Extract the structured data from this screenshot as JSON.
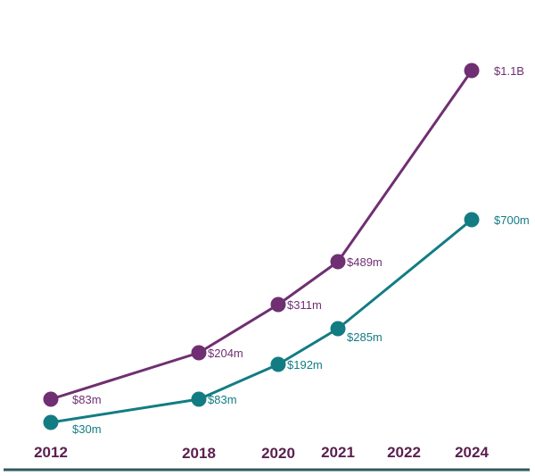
{
  "chart_data": {
    "type": "line",
    "title": "",
    "xlabel": "",
    "ylabel": "",
    "x": [
      "2012",
      "2018",
      "2020",
      "2021",
      "2022",
      "2024"
    ],
    "x_values": [
      2012,
      2018,
      2020,
      2021,
      2022,
      2024
    ],
    "ylim": [
      0,
      1100
    ],
    "grid": false,
    "legend": "none",
    "series": [
      {
        "color": "#6f2f72",
        "points": [
          {
            "x": 2012,
            "y": 83,
            "label": "$83m"
          },
          {
            "x": 2018,
            "y": 204,
            "label": "$204m"
          },
          {
            "x": 2020,
            "y": 311,
            "label": "$311m"
          },
          {
            "x": 2021,
            "y": 489,
            "label": "$489m"
          },
          {
            "x": 2024,
            "y": 1100,
            "label": "$1.1B"
          }
        ]
      },
      {
        "color": "#137c83",
        "points": [
          {
            "x": 2012,
            "y": 30,
            "label": "$30m"
          },
          {
            "x": 2018,
            "y": 83,
            "label": "$83m"
          },
          {
            "x": 2020,
            "y": 192,
            "label": "$192m"
          },
          {
            "x": 2021,
            "y": 285,
            "label": "$285m"
          },
          {
            "x": 2024,
            "y": 700,
            "label": "$700m"
          }
        ]
      }
    ],
    "axis_color": "#2d5a5c",
    "tick_color": "#5b1f4f"
  }
}
